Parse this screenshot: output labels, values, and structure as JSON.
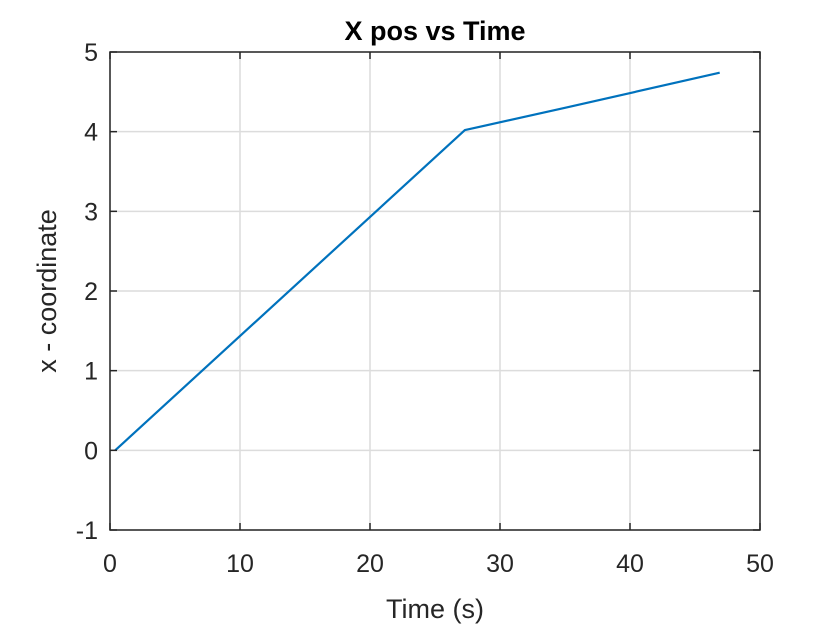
{
  "chart_data": {
    "type": "line",
    "title": "X pos vs Time",
    "xlabel": "Time (s)",
    "ylabel": "x - coordinate",
    "xlim": [
      0,
      50
    ],
    "ylim": [
      -1,
      5
    ],
    "xticks": [
      0,
      10,
      20,
      30,
      40,
      50
    ],
    "yticks": [
      -1,
      0,
      1,
      2,
      3,
      4,
      5
    ],
    "xtick_labels": [
      "0",
      "10",
      "20",
      "30",
      "40",
      "50"
    ],
    "ytick_labels": [
      "-1",
      "0",
      "1",
      "2",
      "3",
      "4",
      "5"
    ],
    "grid": true,
    "legend": "none",
    "series": [
      {
        "color": "#0072bd",
        "x": [
          0.4,
          27.3,
          35.0,
          46.9
        ],
        "y": [
          0.0,
          4.02,
          4.3,
          4.74
        ]
      }
    ]
  }
}
